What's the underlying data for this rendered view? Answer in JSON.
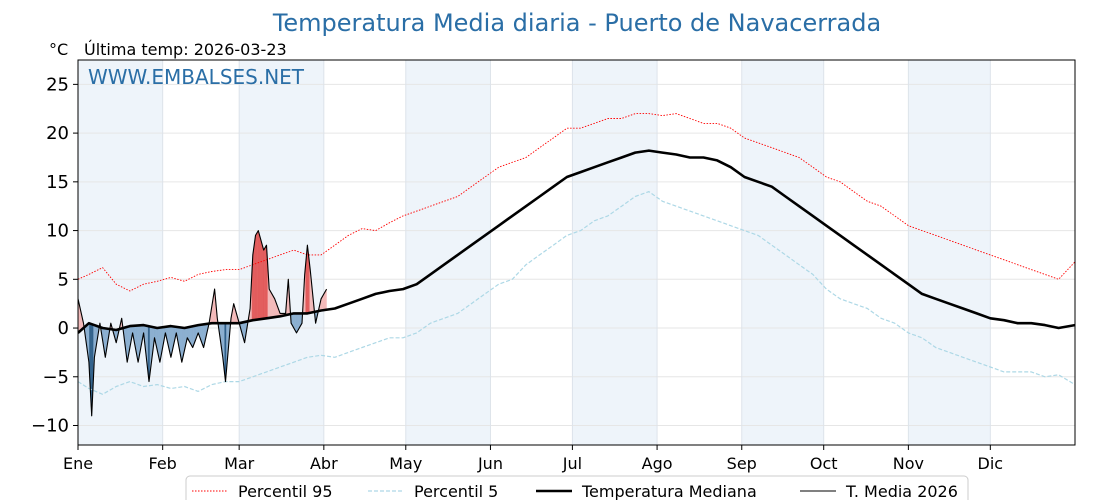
{
  "chart_data": {
    "type": "line",
    "title": "Temperatura Media diaria - Puerto de Navacerrada",
    "unit_label": "°C",
    "subtitle": "Última temp: 2026-03-23",
    "watermark": "WWW.EMBALSES.NET",
    "ylim": [
      -12,
      27.5
    ],
    "yticks": [
      25,
      20,
      15,
      10,
      5,
      0,
      -5,
      -10
    ],
    "ytick_labels": [
      "25",
      "20",
      "15",
      "10",
      "5",
      "0",
      "−5",
      "−10"
    ],
    "months": [
      "Ene",
      "Feb",
      "Mar",
      "Abr",
      "May",
      "Jun",
      "Jul",
      "Ago",
      "Sep",
      "Oct",
      "Nov",
      "Dic"
    ],
    "month_start_days": [
      1,
      32,
      60,
      91,
      121,
      152,
      182,
      213,
      244,
      274,
      305,
      335
    ],
    "day_range": [
      1,
      366
    ],
    "grid": true,
    "legend_position": "bottom",
    "series": [
      {
        "name": "Percentil 95",
        "style": "dotted",
        "color": "#ff0000",
        "points": [
          [
            1,
            5.0
          ],
          [
            5,
            5.5
          ],
          [
            10,
            6.2
          ],
          [
            15,
            4.5
          ],
          [
            20,
            3.8
          ],
          [
            25,
            4.5
          ],
          [
            30,
            4.8
          ],
          [
            35,
            5.2
          ],
          [
            40,
            4.8
          ],
          [
            45,
            5.5
          ],
          [
            50,
            5.8
          ],
          [
            55,
            6.0
          ],
          [
            60,
            6.0
          ],
          [
            65,
            6.5
          ],
          [
            70,
            7.0
          ],
          [
            75,
            7.5
          ],
          [
            80,
            8.0
          ],
          [
            85,
            7.5
          ],
          [
            90,
            7.5
          ],
          [
            95,
            8.5
          ],
          [
            100,
            9.5
          ],
          [
            105,
            10.2
          ],
          [
            110,
            10.0
          ],
          [
            115,
            10.8
          ],
          [
            120,
            11.5
          ],
          [
            125,
            12.0
          ],
          [
            130,
            12.5
          ],
          [
            135,
            13.0
          ],
          [
            140,
            13.5
          ],
          [
            145,
            14.5
          ],
          [
            150,
            15.5
          ],
          [
            155,
            16.5
          ],
          [
            160,
            17.0
          ],
          [
            165,
            17.5
          ],
          [
            170,
            18.5
          ],
          [
            175,
            19.5
          ],
          [
            180,
            20.5
          ],
          [
            185,
            20.5
          ],
          [
            190,
            21.0
          ],
          [
            195,
            21.5
          ],
          [
            200,
            21.5
          ],
          [
            205,
            22.0
          ],
          [
            210,
            22.0
          ],
          [
            215,
            21.8
          ],
          [
            220,
            22.0
          ],
          [
            225,
            21.5
          ],
          [
            230,
            21.0
          ],
          [
            235,
            21.0
          ],
          [
            240,
            20.5
          ],
          [
            245,
            19.5
          ],
          [
            250,
            19.0
          ],
          [
            255,
            18.5
          ],
          [
            260,
            18.0
          ],
          [
            265,
            17.5
          ],
          [
            270,
            16.5
          ],
          [
            275,
            15.5
          ],
          [
            280,
            15.0
          ],
          [
            285,
            14.0
          ],
          [
            290,
            13.0
          ],
          [
            295,
            12.5
          ],
          [
            300,
            11.5
          ],
          [
            305,
            10.5
          ],
          [
            310,
            10.0
          ],
          [
            315,
            9.5
          ],
          [
            320,
            9.0
          ],
          [
            325,
            8.5
          ],
          [
            330,
            8.0
          ],
          [
            335,
            7.5
          ],
          [
            340,
            7.0
          ],
          [
            345,
            6.5
          ],
          [
            350,
            6.0
          ],
          [
            355,
            5.5
          ],
          [
            360,
            5.0
          ],
          [
            366,
            6.8
          ]
        ]
      },
      {
        "name": "Percentil 5",
        "style": "dashed",
        "color": "#add8e6",
        "points": [
          [
            1,
            -5.5
          ],
          [
            5,
            -6.2
          ],
          [
            10,
            -6.8
          ],
          [
            15,
            -6.0
          ],
          [
            20,
            -5.5
          ],
          [
            25,
            -6.0
          ],
          [
            30,
            -5.8
          ],
          [
            35,
            -6.2
          ],
          [
            40,
            -6.0
          ],
          [
            45,
            -6.5
          ],
          [
            50,
            -5.8
          ],
          [
            55,
            -5.5
          ],
          [
            60,
            -5.5
          ],
          [
            65,
            -5.0
          ],
          [
            70,
            -4.5
          ],
          [
            75,
            -4.0
          ],
          [
            80,
            -3.5
          ],
          [
            85,
            -3.0
          ],
          [
            90,
            -2.8
          ],
          [
            95,
            -3.0
          ],
          [
            100,
            -2.5
          ],
          [
            105,
            -2.0
          ],
          [
            110,
            -1.5
          ],
          [
            115,
            -1.0
          ],
          [
            120,
            -1.0
          ],
          [
            125,
            -0.5
          ],
          [
            130,
            0.5
          ],
          [
            135,
            1.0
          ],
          [
            140,
            1.5
          ],
          [
            145,
            2.5
          ],
          [
            150,
            3.5
          ],
          [
            155,
            4.5
          ],
          [
            160,
            5.0
          ],
          [
            165,
            6.5
          ],
          [
            170,
            7.5
          ],
          [
            175,
            8.5
          ],
          [
            180,
            9.5
          ],
          [
            185,
            10.0
          ],
          [
            190,
            11.0
          ],
          [
            195,
            11.5
          ],
          [
            200,
            12.5
          ],
          [
            205,
            13.5
          ],
          [
            210,
            14.0
          ],
          [
            215,
            13.0
          ],
          [
            220,
            12.5
          ],
          [
            225,
            12.0
          ],
          [
            230,
            11.5
          ],
          [
            235,
            11.0
          ],
          [
            240,
            10.5
          ],
          [
            245,
            10.0
          ],
          [
            250,
            9.5
          ],
          [
            255,
            8.5
          ],
          [
            260,
            7.5
          ],
          [
            265,
            6.5
          ],
          [
            270,
            5.5
          ],
          [
            275,
            4.0
          ],
          [
            280,
            3.0
          ],
          [
            285,
            2.5
          ],
          [
            290,
            2.0
          ],
          [
            295,
            1.0
          ],
          [
            300,
            0.5
          ],
          [
            305,
            -0.5
          ],
          [
            310,
            -1.0
          ],
          [
            315,
            -2.0
          ],
          [
            320,
            -2.5
          ],
          [
            325,
            -3.0
          ],
          [
            330,
            -3.5
          ],
          [
            335,
            -4.0
          ],
          [
            340,
            -4.5
          ],
          [
            345,
            -4.5
          ],
          [
            350,
            -4.5
          ],
          [
            355,
            -5.0
          ],
          [
            360,
            -4.8
          ],
          [
            366,
            -5.8
          ]
        ]
      },
      {
        "name": "Temperatura Mediana",
        "style": "solid-thick",
        "color": "#000000",
        "points": [
          [
            1,
            -0.5
          ],
          [
            5,
            0.5
          ],
          [
            10,
            0.0
          ],
          [
            15,
            -0.2
          ],
          [
            20,
            0.2
          ],
          [
            25,
            0.3
          ],
          [
            30,
            0.0
          ],
          [
            35,
            0.2
          ],
          [
            40,
            0.0
          ],
          [
            45,
            0.3
          ],
          [
            50,
            0.5
          ],
          [
            55,
            0.5
          ],
          [
            60,
            0.5
          ],
          [
            65,
            0.8
          ],
          [
            70,
            1.0
          ],
          [
            75,
            1.2
          ],
          [
            80,
            1.5
          ],
          [
            85,
            1.5
          ],
          [
            90,
            1.8
          ],
          [
            95,
            2.0
          ],
          [
            100,
            2.5
          ],
          [
            105,
            3.0
          ],
          [
            110,
            3.5
          ],
          [
            115,
            3.8
          ],
          [
            120,
            4.0
          ],
          [
            125,
            4.5
          ],
          [
            130,
            5.5
          ],
          [
            135,
            6.5
          ],
          [
            140,
            7.5
          ],
          [
            145,
            8.5
          ],
          [
            150,
            9.5
          ],
          [
            155,
            10.5
          ],
          [
            160,
            11.5
          ],
          [
            165,
            12.5
          ],
          [
            170,
            13.5
          ],
          [
            175,
            14.5
          ],
          [
            180,
            15.5
          ],
          [
            185,
            16.0
          ],
          [
            190,
            16.5
          ],
          [
            195,
            17.0
          ],
          [
            200,
            17.5
          ],
          [
            205,
            18.0
          ],
          [
            210,
            18.2
          ],
          [
            215,
            18.0
          ],
          [
            220,
            17.8
          ],
          [
            225,
            17.5
          ],
          [
            230,
            17.5
          ],
          [
            235,
            17.2
          ],
          [
            240,
            16.5
          ],
          [
            245,
            15.5
          ],
          [
            250,
            15.0
          ],
          [
            255,
            14.5
          ],
          [
            260,
            13.5
          ],
          [
            265,
            12.5
          ],
          [
            270,
            11.5
          ],
          [
            275,
            10.5
          ],
          [
            280,
            9.5
          ],
          [
            285,
            8.5
          ],
          [
            290,
            7.5
          ],
          [
            295,
            6.5
          ],
          [
            300,
            5.5
          ],
          [
            305,
            4.5
          ],
          [
            310,
            3.5
          ],
          [
            315,
            3.0
          ],
          [
            320,
            2.5
          ],
          [
            325,
            2.0
          ],
          [
            330,
            1.5
          ],
          [
            335,
            1.0
          ],
          [
            340,
            0.8
          ],
          [
            345,
            0.5
          ],
          [
            350,
            0.5
          ],
          [
            355,
            0.3
          ],
          [
            360,
            0.0
          ],
          [
            366,
            0.3
          ]
        ]
      },
      {
        "name": "T. Media 2026",
        "style": "solid-thin",
        "color": "#000000",
        "points": [
          [
            1,
            3.0
          ],
          [
            3,
            0.5
          ],
          [
            5,
            -3.5
          ],
          [
            6,
            -9.0
          ],
          [
            7,
            -3.0
          ],
          [
            9,
            0.5
          ],
          [
            11,
            -3.0
          ],
          [
            13,
            0.5
          ],
          [
            15,
            -1.5
          ],
          [
            17,
            1.0
          ],
          [
            19,
            -3.5
          ],
          [
            21,
            -0.5
          ],
          [
            23,
            -3.5
          ],
          [
            25,
            -0.5
          ],
          [
            27,
            -5.5
          ],
          [
            29,
            -1.0
          ],
          [
            31,
            -3.5
          ],
          [
            33,
            -0.5
          ],
          [
            35,
            -3.0
          ],
          [
            37,
            -0.5
          ],
          [
            39,
            -3.5
          ],
          [
            41,
            -1.0
          ],
          [
            43,
            -2.0
          ],
          [
            45,
            -0.5
          ],
          [
            47,
            -2.0
          ],
          [
            49,
            0.5
          ],
          [
            51,
            4.0
          ],
          [
            52,
            1.0
          ],
          [
            54,
            -3.0
          ],
          [
            55,
            -5.5
          ],
          [
            57,
            1.0
          ],
          [
            58,
            2.5
          ],
          [
            60,
            0.5
          ],
          [
            62,
            -1.5
          ],
          [
            64,
            2.0
          ],
          [
            65,
            7.5
          ],
          [
            66,
            9.5
          ],
          [
            67,
            10.0
          ],
          [
            69,
            8.0
          ],
          [
            70,
            8.5
          ],
          [
            71,
            4.0
          ],
          [
            73,
            3.0
          ],
          [
            75,
            1.5
          ],
          [
            77,
            1.5
          ],
          [
            78,
            5.0
          ],
          [
            79,
            0.5
          ],
          [
            81,
            -0.5
          ],
          [
            83,
            0.5
          ],
          [
            84,
            5.5
          ],
          [
            85,
            8.5
          ],
          [
            86,
            6.0
          ],
          [
            88,
            0.5
          ],
          [
            90,
            3.0
          ],
          [
            92,
            4.0
          ]
        ]
      }
    ]
  }
}
